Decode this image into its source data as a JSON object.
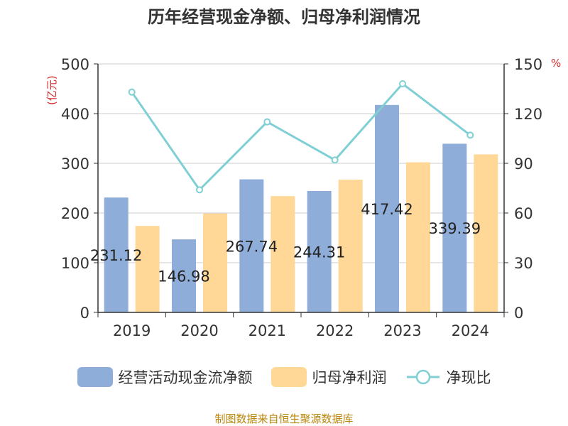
{
  "chart_data": {
    "type": "bar",
    "title": "历年经营现金净额、归母净利润情况",
    "categories": [
      "2019",
      "2020",
      "2021",
      "2022",
      "2023",
      "2024"
    ],
    "series": [
      {
        "name": "经营活动现金流净额",
        "type": "bar",
        "axis": "left",
        "color": "#8eadd9",
        "values": [
          231.12,
          146.98,
          267.74,
          244.31,
          417.42,
          339.39
        ],
        "labels": [
          "231.12",
          "146.98",
          "267.74",
          "244.31",
          "417.42",
          "339.39"
        ]
      },
      {
        "name": "归母净利润",
        "type": "bar",
        "axis": "left",
        "color": "#ffd897",
        "values": [
          174,
          199,
          234,
          267,
          302,
          318
        ]
      },
      {
        "name": "净现比",
        "type": "line",
        "axis": "right",
        "color": "#7fcfd4",
        "values": [
          133,
          74,
          115,
          92,
          138,
          107
        ]
      }
    ],
    "y_left": {
      "unit": "(亿元)",
      "range": [
        0,
        500
      ],
      "ticks": [
        "0",
        "100",
        "200",
        "300",
        "400",
        "500"
      ]
    },
    "y_right": {
      "unit": "%",
      "range": [
        0,
        150
      ],
      "ticks": [
        "0",
        "30",
        "60",
        "90",
        "120",
        "150"
      ]
    },
    "grid": true,
    "legend_position": "bottom"
  },
  "source_note": "制图数据来自恒生聚源数据库"
}
